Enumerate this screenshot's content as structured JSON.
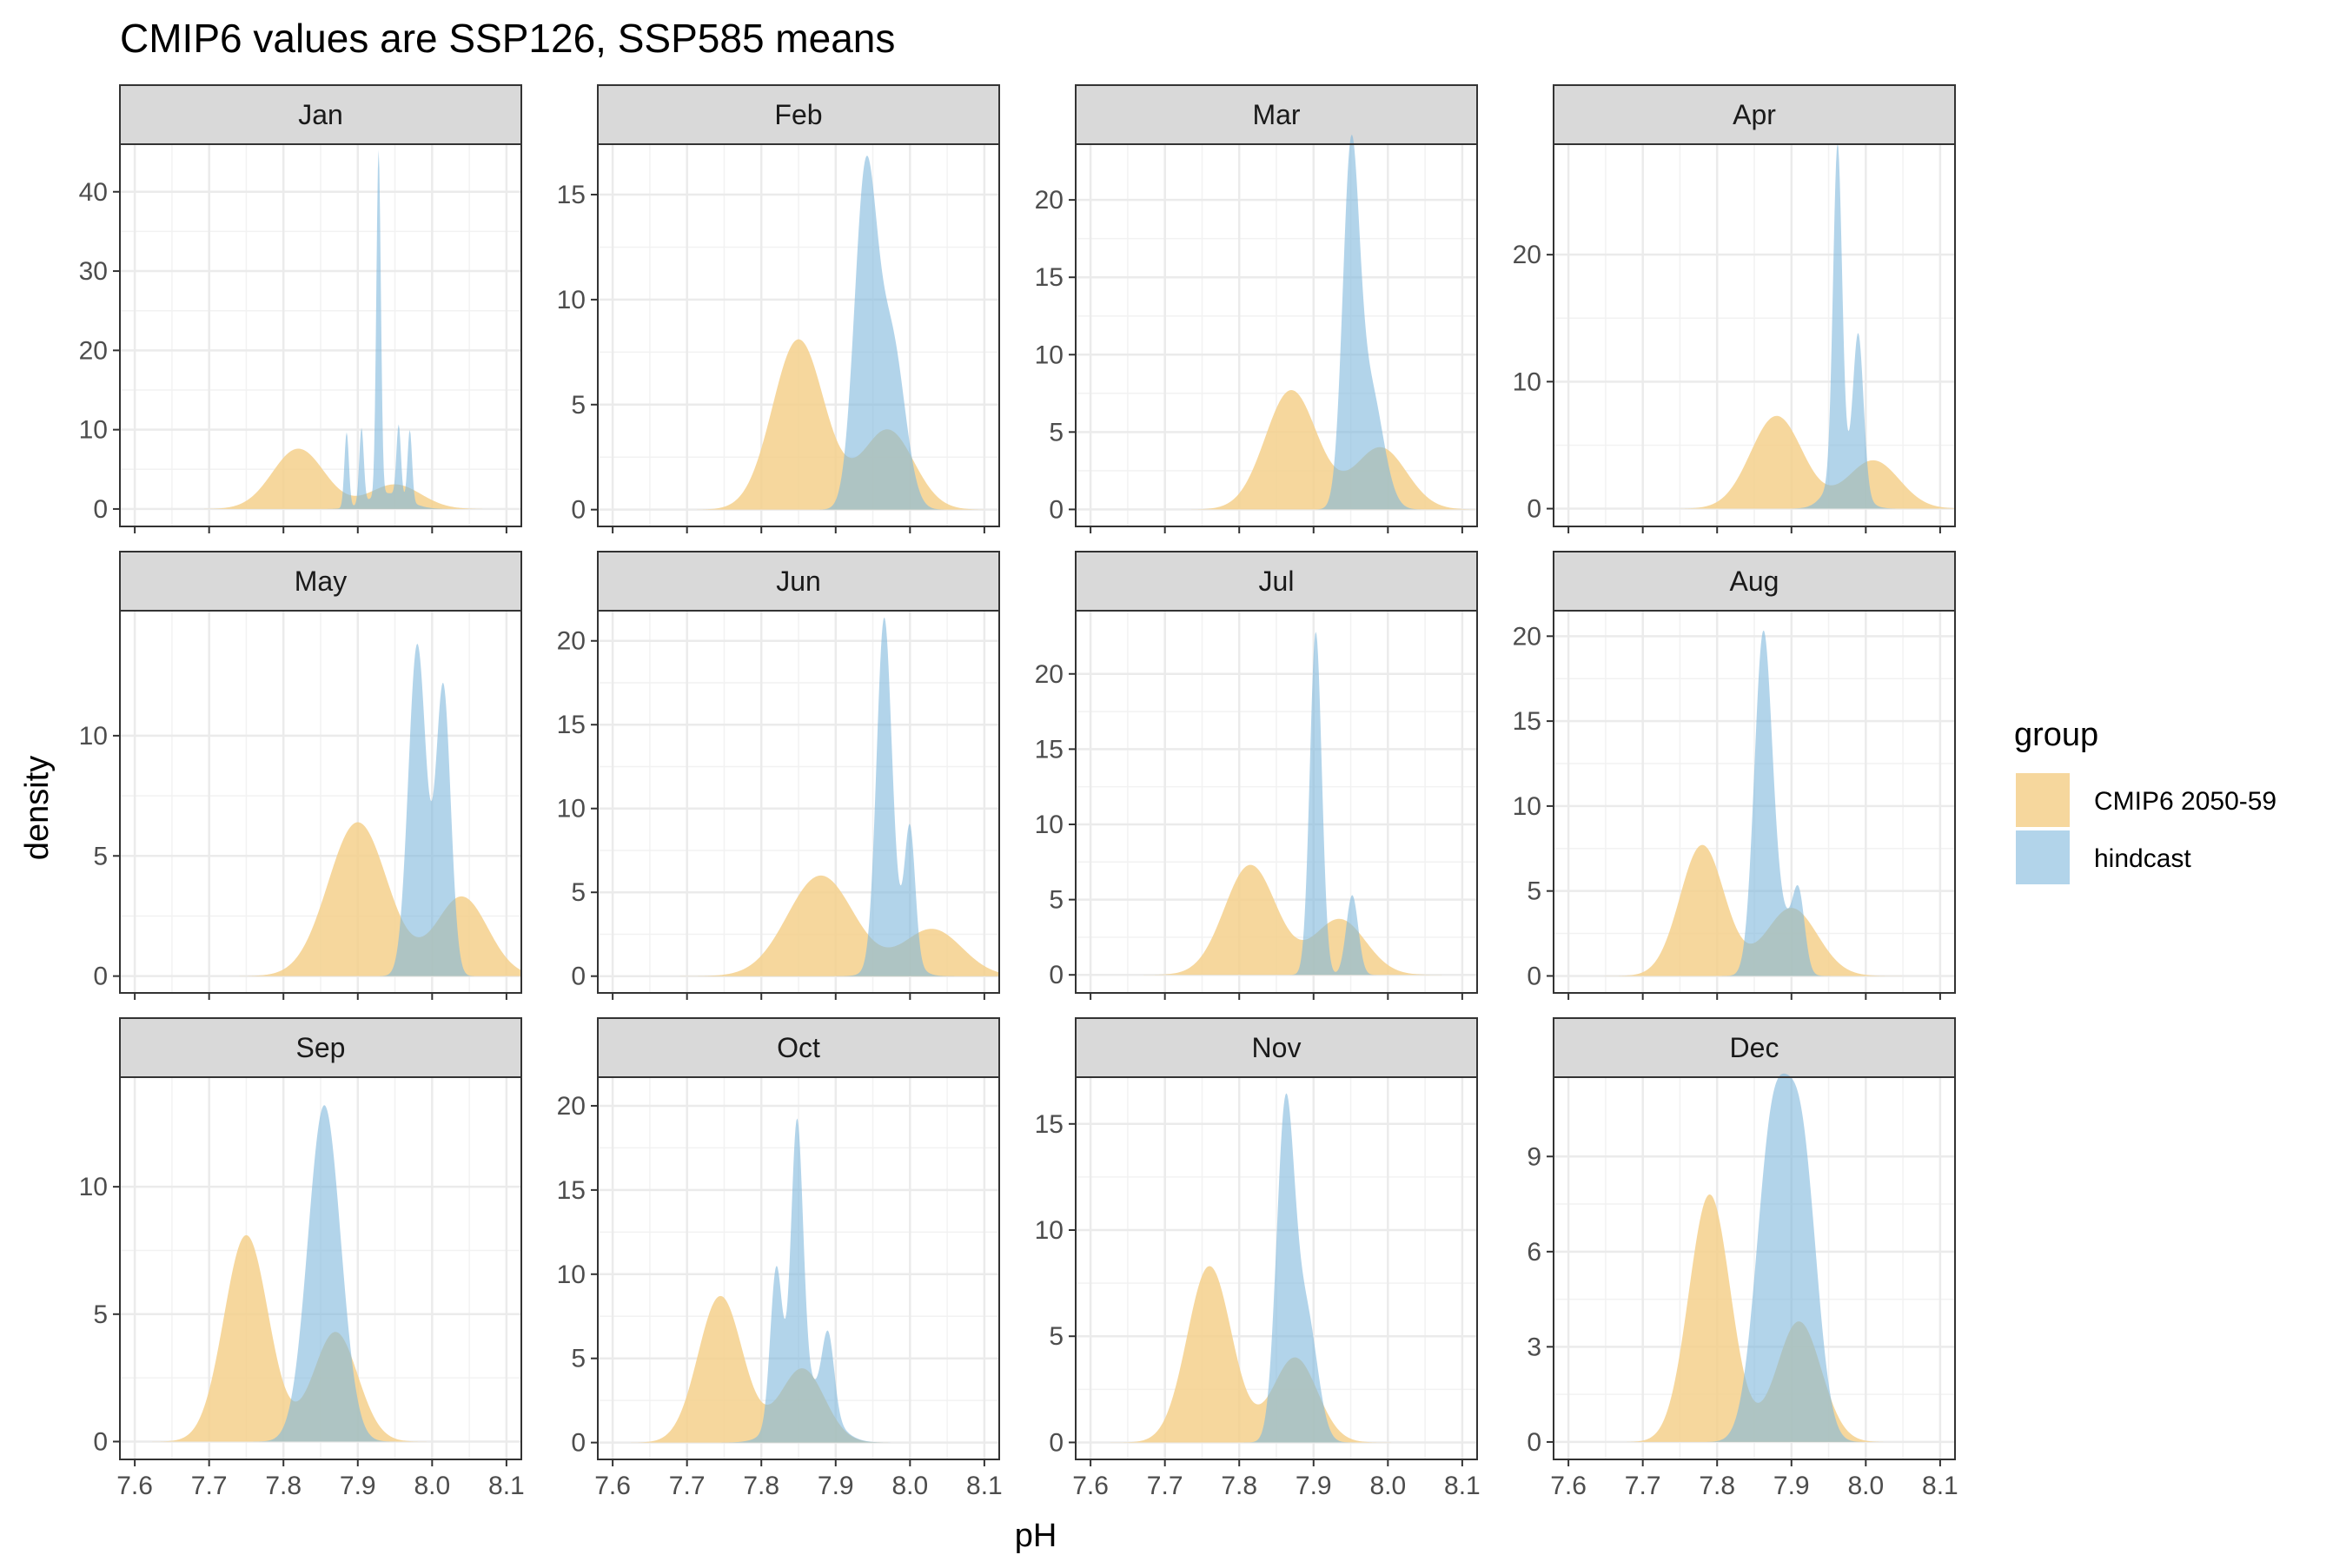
{
  "chart_data": {
    "type": "area",
    "subtype": "faceted density",
    "title": "CMIP6 values are SSP126, SSP585 means",
    "xlabel": "pH",
    "ylabel": "density",
    "xlim": [
      7.58,
      8.12
    ],
    "x_ticks": [
      7.6,
      7.7,
      7.8,
      7.9,
      8.0,
      8.1
    ],
    "x_tick_labels": [
      "7.6",
      "7.7",
      "7.8",
      "7.9",
      "8.0",
      "8.1"
    ],
    "grid": true,
    "legend": {
      "title": "group",
      "placement": "right",
      "entries": [
        {
          "label": "CMIP6 2050-59",
          "color": "#f5d08c"
        },
        {
          "label": "hindcast",
          "color": "#7fb8dc"
        }
      ]
    },
    "colors": {
      "cmip6": "#f5d08c",
      "hindcast": "#7fb8dc",
      "strip_bg": "#d9d9d9"
    },
    "facets": [
      {
        "name": "Jan",
        "ylim": [
          -2.2,
          46
        ],
        "y_ticks": [
          0,
          10,
          20,
          30,
          40
        ],
        "y_tick_labels": [
          "0",
          "10",
          "20",
          "30",
          "40"
        ],
        "series": [
          {
            "name": "CMIP6 2050-59",
            "peaks": [
              [
                7.82,
                0.035,
                7.6
              ],
              [
                7.95,
                0.035,
                3.1
              ]
            ]
          },
          {
            "name": "hindcast",
            "peaks": [
              [
                7.885,
                0.003,
                9.5
              ],
              [
                7.905,
                0.003,
                9.5
              ],
              [
                7.928,
                0.003,
                43.5
              ],
              [
                7.955,
                0.003,
                9.0
              ],
              [
                7.97,
                0.003,
                9.0
              ],
              [
                7.94,
                0.025,
                2.0
              ]
            ]
          }
        ]
      },
      {
        "name": "Feb",
        "ylim": [
          -0.8,
          17.4
        ],
        "y_ticks": [
          0,
          5,
          10,
          15
        ],
        "y_tick_labels": [
          "0",
          "5",
          "10",
          "15"
        ],
        "series": [
          {
            "name": "CMIP6 2050-59",
            "peaks": [
              [
                7.85,
                0.035,
                8.1
              ],
              [
                7.97,
                0.035,
                3.8
              ]
            ]
          },
          {
            "name": "hindcast",
            "peaks": [
              [
                7.94,
                0.015,
                15.5
              ],
              [
                7.975,
                0.018,
                8.0
              ]
            ]
          }
        ]
      },
      {
        "name": "Mar",
        "ylim": [
          -1.1,
          23.6
        ],
        "y_ticks": [
          0,
          5,
          10,
          15,
          20
        ],
        "y_tick_labels": [
          "0",
          "5",
          "10",
          "15",
          "20"
        ],
        "series": [
          {
            "name": "CMIP6 2050-59",
            "peaks": [
              [
                7.87,
                0.035,
                7.7
              ],
              [
                7.99,
                0.035,
                4.0
              ]
            ]
          },
          {
            "name": "hindcast",
            "peaks": [
              [
                7.95,
                0.011,
                21.0
              ],
              [
                7.975,
                0.018,
                8.0
              ]
            ]
          }
        ]
      },
      {
        "name": "Apr",
        "ylim": [
          -1.4,
          28.7
        ],
        "y_ticks": [
          0,
          10,
          20
        ],
        "y_tick_labels": [
          "0",
          "10",
          "20"
        ],
        "series": [
          {
            "name": "CMIP6 2050-59",
            "peaks": [
              [
                7.88,
                0.035,
                7.3
              ],
              [
                8.01,
                0.035,
                3.8
              ]
            ]
          },
          {
            "name": "hindcast",
            "peaks": [
              [
                7.962,
                0.006,
                26.0
              ],
              [
                7.99,
                0.007,
                12.0
              ],
              [
                7.97,
                0.02,
                3.0
              ]
            ]
          }
        ]
      },
      {
        "name": "May",
        "ylim": [
          -0.7,
          15.2
        ],
        "y_ticks": [
          0,
          5,
          10
        ],
        "y_tick_labels": [
          "0",
          "5",
          "10"
        ],
        "series": [
          {
            "name": "CMIP6 2050-59",
            "peaks": [
              [
                7.9,
                0.04,
                6.4
              ],
              [
                8.04,
                0.035,
                3.3
              ]
            ]
          },
          {
            "name": "hindcast",
            "peaks": [
              [
                7.98,
                0.012,
                13.8
              ],
              [
                8.015,
                0.01,
                12.0
              ]
            ]
          }
        ]
      },
      {
        "name": "Jun",
        "ylim": [
          -1.0,
          21.8
        ],
        "y_ticks": [
          0,
          5,
          10,
          15,
          20
        ],
        "y_tick_labels": [
          "0",
          "5",
          "10",
          "15",
          "20"
        ],
        "series": [
          {
            "name": "CMIP6 2050-59",
            "peaks": [
              [
                7.88,
                0.045,
                6.0
              ],
              [
                8.03,
                0.04,
                2.8
              ]
            ]
          },
          {
            "name": "hindcast",
            "peaks": [
              [
                7.965,
                0.01,
                19.5
              ],
              [
                8.0,
                0.007,
                7.5
              ],
              [
                7.98,
                0.02,
                2.5
              ]
            ]
          }
        ]
      },
      {
        "name": "Jul",
        "ylim": [
          -1.2,
          24.2
        ],
        "y_ticks": [
          0,
          5,
          10,
          15,
          20
        ],
        "y_tick_labels": [
          "0",
          "5",
          "10",
          "15",
          "20"
        ],
        "series": [
          {
            "name": "CMIP6 2050-59",
            "peaks": [
              [
                7.815,
                0.035,
                7.3
              ],
              [
                7.935,
                0.035,
                3.7
              ]
            ]
          },
          {
            "name": "hindcast",
            "peaks": [
              [
                7.903,
                0.008,
                22.8
              ],
              [
                7.952,
                0.008,
                5.3
              ]
            ]
          }
        ]
      },
      {
        "name": "Aug",
        "ylim": [
          -1.0,
          21.5
        ],
        "y_ticks": [
          0,
          5,
          10,
          15,
          20
        ],
        "y_tick_labels": [
          "0",
          "5",
          "10",
          "15",
          "20"
        ],
        "series": [
          {
            "name": "CMIP6 2050-59",
            "peaks": [
              [
                7.78,
                0.03,
                7.7
              ],
              [
                7.9,
                0.035,
                4.0
              ]
            ]
          },
          {
            "name": "hindcast",
            "peaks": [
              [
                7.862,
                0.012,
                19.8
              ],
              [
                7.91,
                0.008,
                4.0
              ],
              [
                7.89,
                0.015,
                3.0
              ]
            ]
          }
        ]
      },
      {
        "name": "Sep",
        "ylim": [
          -0.7,
          14.3
        ],
        "y_ticks": [
          0,
          5,
          10
        ],
        "y_tick_labels": [
          "0",
          "5",
          "10"
        ],
        "series": [
          {
            "name": "CMIP6 2050-59",
            "peaks": [
              [
                7.75,
                0.03,
                8.1
              ],
              [
                7.87,
                0.03,
                4.3
              ]
            ]
          },
          {
            "name": "hindcast",
            "peaks": [
              [
                7.855,
                0.022,
                13.2
              ]
            ]
          }
        ]
      },
      {
        "name": "Oct",
        "ylim": [
          -1.0,
          21.7
        ],
        "y_ticks": [
          0,
          5,
          10,
          15,
          20
        ],
        "y_tick_labels": [
          "0",
          "5",
          "10",
          "15",
          "20"
        ],
        "series": [
          {
            "name": "CMIP6 2050-59",
            "peaks": [
              [
                7.745,
                0.03,
                8.7
              ],
              [
                7.855,
                0.03,
                4.4
              ]
            ]
          },
          {
            "name": "hindcast",
            "peaks": [
              [
                7.848,
                0.008,
                16.0
              ],
              [
                7.82,
                0.008,
                9.0
              ],
              [
                7.89,
                0.008,
                4.5
              ],
              [
                7.86,
                0.03,
                3.5
              ]
            ]
          }
        ]
      },
      {
        "name": "Nov",
        "ylim": [
          -0.8,
          17.2
        ],
        "y_ticks": [
          0,
          5,
          10,
          15
        ],
        "y_tick_labels": [
          "0",
          "5",
          "10",
          "15"
        ],
        "series": [
          {
            "name": "CMIP6 2050-59",
            "peaks": [
              [
                7.76,
                0.03,
                8.3
              ],
              [
                7.875,
                0.03,
                4.0
              ]
            ]
          },
          {
            "name": "hindcast",
            "peaks": [
              [
                7.862,
                0.012,
                15.3
              ],
              [
                7.89,
                0.015,
                6.0
              ]
            ]
          }
        ]
      },
      {
        "name": "Dec",
        "ylim": [
          -0.55,
          11.5
        ],
        "y_ticks": [
          0,
          3,
          6,
          9
        ],
        "y_tick_labels": [
          "0",
          "3",
          "6",
          "9"
        ],
        "series": [
          {
            "name": "CMIP6 2050-59",
            "peaks": [
              [
                7.79,
                0.028,
                7.8
              ],
              [
                7.91,
                0.03,
                3.8
              ]
            ]
          },
          {
            "name": "hindcast",
            "peaks": [
              [
                7.875,
                0.022,
                9.8
              ],
              [
                7.915,
                0.02,
                8.4
              ]
            ]
          }
        ]
      }
    ]
  }
}
